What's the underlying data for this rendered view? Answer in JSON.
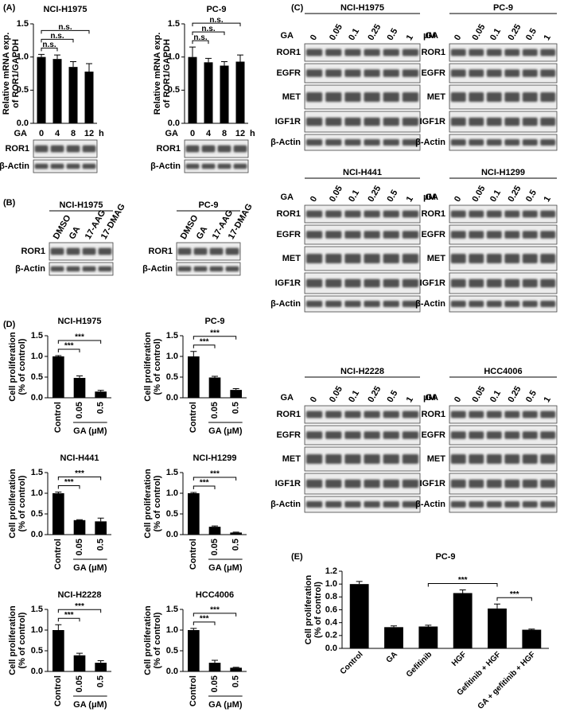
{
  "panel_labels": [
    "(A)",
    "(B)",
    "(C)",
    "(D)",
    "(E)"
  ],
  "chart_data": [
    {
      "type": "bar",
      "title": "NCI-H1975",
      "ylabel": [
        "Relative mRNA exp.",
        "of ROR1/GAPDH"
      ],
      "x_prefix": "GA",
      "x_suffix": "h",
      "categories": [
        "0",
        "4",
        "8",
        "12"
      ],
      "values": [
        1.0,
        0.97,
        0.85,
        0.78
      ],
      "errors": [
        0.04,
        0.06,
        0.08,
        0.12
      ],
      "color": "#000000",
      "ylim": [
        0,
        1.5
      ],
      "yticks": [
        {
          "value": 0,
          "label": "0.0"
        },
        0.5,
        {
          "value": 1,
          "label": "1.0"
        },
        1.5
      ],
      "brackets": [
        {
          "span": [
            0,
            1
          ],
          "label": "n.s."
        },
        {
          "span": [
            0,
            2
          ],
          "label": "n.s."
        },
        {
          "span": [
            0,
            3
          ],
          "label": "n.s."
        }
      ]
    },
    {
      "type": "bar",
      "title": "PC-9",
      "ylabel": [
        "Relative mRNA exp.",
        "of ROR1/GAPDH"
      ],
      "x_prefix": "GA",
      "x_suffix": "h",
      "categories": [
        "0",
        "4",
        "8",
        "12"
      ],
      "values": [
        1.0,
        0.92,
        0.87,
        0.93
      ],
      "errors": [
        0.15,
        0.06,
        0.06,
        0.1
      ],
      "color": "#000000",
      "ylim": [
        0,
        1.5
      ],
      "yticks": [
        {
          "value": 0,
          "label": "0.0"
        },
        0.5,
        {
          "value": 1,
          "label": "1.0"
        },
        1.5
      ],
      "brackets": [
        {
          "span": [
            0,
            1
          ],
          "label": "n.s."
        },
        {
          "span": [
            0,
            2
          ],
          "label": "n.s."
        },
        {
          "span": [
            0,
            3
          ],
          "label": "n.s."
        }
      ]
    },
    {
      "type": "bar",
      "title": "NCI-H1975",
      "ylabel": [
        "Cell proliferation",
        "(% of control)"
      ],
      "xlabel": "GA (μM)",
      "categories": [
        "Control",
        "0.05",
        "0.5"
      ],
      "values": [
        1.0,
        0.48,
        0.15
      ],
      "errors": [
        0.02,
        0.05,
        0.03
      ],
      "color": "#000000",
      "ylim": [
        0,
        1.5
      ],
      "yticks": [
        {
          "value": 0,
          "label": "0.0"
        },
        0.5,
        {
          "value": 1,
          "label": "1.0"
        },
        1.5
      ],
      "brackets": [
        {
          "span": [
            0,
            1
          ],
          "label": "***"
        },
        {
          "span": [
            0,
            2
          ],
          "label": "***"
        }
      ]
    },
    {
      "type": "bar",
      "title": "PC-9",
      "ylabel": [
        "Cell proliferation",
        "(% of control)"
      ],
      "xlabel": "GA (μM)",
      "categories": [
        "Control",
        "0.05",
        "0.5"
      ],
      "values": [
        1.0,
        0.49,
        0.19
      ],
      "errors": [
        0.12,
        0.03,
        0.03
      ],
      "color": "#000000",
      "ylim": [
        0,
        1.5
      ],
      "yticks": [
        {
          "value": 0,
          "label": "0.0"
        },
        0.5,
        {
          "value": 1,
          "label": "1.0"
        },
        1.5
      ],
      "brackets": [
        {
          "span": [
            0,
            1
          ],
          "label": "***"
        },
        {
          "span": [
            0,
            2
          ],
          "label": "***"
        }
      ]
    },
    {
      "type": "bar",
      "title": "NCI-H441",
      "ylabel": [
        "Cell proliferation",
        "(% of control)"
      ],
      "xlabel": "GA (μM)",
      "categories": [
        "Control",
        "0.05",
        "0.5"
      ],
      "values": [
        1.0,
        0.35,
        0.32
      ],
      "errors": [
        0.03,
        0.01,
        0.08
      ],
      "color": "#000000",
      "ylim": [
        0,
        1.5
      ],
      "yticks": [
        {
          "value": 0,
          "label": "0.0"
        },
        0.5,
        {
          "value": 1,
          "label": "1.0"
        },
        1.5
      ],
      "brackets": [
        {
          "span": [
            0,
            1
          ],
          "label": "***"
        },
        {
          "span": [
            0,
            2
          ],
          "label": "***"
        }
      ]
    },
    {
      "type": "bar",
      "title": "NCI-H1299",
      "ylabel": [
        "Cell proliferation",
        "(% of control)"
      ],
      "xlabel": "GA (μM)",
      "categories": [
        "Control",
        "0.05",
        "0.5"
      ],
      "values": [
        1.0,
        0.19,
        0.05
      ],
      "errors": [
        0.02,
        0.02,
        0.01
      ],
      "color": "#000000",
      "ylim": [
        0,
        1.5
      ],
      "yticks": [
        {
          "value": 0,
          "label": "0.0"
        },
        0.5,
        {
          "value": 1,
          "label": "1.0"
        },
        1.5
      ],
      "brackets": [
        {
          "span": [
            0,
            1
          ],
          "label": "***"
        },
        {
          "span": [
            0,
            2
          ],
          "label": "***"
        }
      ]
    },
    {
      "type": "bar",
      "title": "NCI-H2228",
      "ylabel": [
        "Cell proliferation",
        "(% of control)"
      ],
      "xlabel": "GA (μM)",
      "categories": [
        "Control",
        "0.05",
        "0.5"
      ],
      "values": [
        1.0,
        0.39,
        0.21
      ],
      "errors": [
        0.13,
        0.05,
        0.05
      ],
      "color": "#000000",
      "ylim": [
        0,
        1.5
      ],
      "yticks": [
        {
          "value": 0,
          "label": "0.0"
        },
        0.5,
        {
          "value": 1,
          "label": "1.0"
        },
        1.5
      ],
      "brackets": [
        {
          "span": [
            0,
            1
          ],
          "label": "***"
        },
        {
          "span": [
            0,
            2
          ],
          "label": "***"
        }
      ]
    },
    {
      "type": "bar",
      "title": "HCC4006",
      "ylabel": [
        "Cell proliferation",
        "(% of control)"
      ],
      "xlabel": "GA (μM)",
      "categories": [
        "Control",
        "0.05",
        "0.5"
      ],
      "values": [
        1.0,
        0.21,
        0.09
      ],
      "errors": [
        0.04,
        0.06,
        0.01
      ],
      "color": "#000000",
      "ylim": [
        0,
        1.5
      ],
      "yticks": [
        {
          "value": 0,
          "label": "0.0"
        },
        0.5,
        {
          "value": 1,
          "label": "1.0"
        },
        1.5
      ],
      "brackets": [
        {
          "span": [
            0,
            1
          ],
          "label": "***"
        },
        {
          "span": [
            0,
            2
          ],
          "label": "***"
        }
      ]
    },
    {
      "type": "bar",
      "title": "PC-9",
      "ylabel": [
        "Cell proliferation",
        "(% of control)"
      ],
      "categories": [
        "Control",
        "GA",
        "Gefitinib",
        "HGF",
        "Gefitinib + HGF",
        "GA + gefitinib + HGF"
      ],
      "values": [
        1.0,
        0.33,
        0.34,
        0.86,
        0.62,
        0.29
      ],
      "errors": [
        0.04,
        0.02,
        0.02,
        0.05,
        0.07,
        0.01
      ],
      "color": "#000000",
      "ylim": [
        0,
        1.2
      ],
      "yticks": [
        {
          "value": 0,
          "label": "0.0"
        },
        0.2,
        0.4,
        0.6,
        0.8,
        {
          "value": 1,
          "label": "1.0"
        },
        1.2
      ],
      "brackets": [
        {
          "span": [
            2,
            4
          ],
          "label": "***"
        },
        {
          "span": [
            4,
            5
          ],
          "label": "***"
        }
      ]
    }
  ],
  "blots_a": [
    {
      "rows": [
        "ROR1",
        "β-Actin"
      ]
    },
    {
      "rows": [
        "ROR1",
        "β-Actin"
      ]
    }
  ],
  "blots_b": [
    {
      "title": "NCI-H1975",
      "lanes": [
        "DMSO",
        "GA",
        "17-AAG",
        "17-DMAG"
      ],
      "rows": [
        "ROR1",
        "β-Actin"
      ]
    },
    {
      "title": "PC-9",
      "lanes": [
        "DMSO",
        "GA",
        "17-AAG",
        "17-DMAG"
      ],
      "rows": [
        "ROR1",
        "β-Actin"
      ]
    }
  ],
  "blots_c": [
    {
      "title": "NCI-H1975",
      "treatment": "GA",
      "lanes": [
        "0",
        "0.05",
        "0.1",
        "0.25",
        "0.5",
        "1"
      ],
      "unit": "μM",
      "rows": [
        "ROR1",
        "EGFR",
        "MET",
        "IGF1R",
        "β-Actin"
      ]
    },
    {
      "title": "PC-9",
      "treatment": "GA",
      "lanes": [
        "0",
        "0.05",
        "0.1",
        "0.25",
        "0.5",
        "1"
      ],
      "rows": [
        "ROR1",
        "EGFR",
        "MET",
        "IGF1R",
        "β-Actin"
      ]
    },
    {
      "title": "NCI-H441",
      "treatment": "GA",
      "lanes": [
        "0",
        "0.05",
        "0.1",
        "0.25",
        "0.5",
        "1"
      ],
      "unit": "μM",
      "rows": [
        "ROR1",
        "EGFR",
        "MET",
        "IGF1R",
        "β-Actin"
      ]
    },
    {
      "title": "NCI-H1299",
      "treatment": "GA",
      "lanes": [
        "0",
        "0.05",
        "0.1",
        "0.25",
        "0.5",
        "1"
      ],
      "rows": [
        "ROR1",
        "EGFR",
        "MET",
        "IGF1R",
        "β-Actin"
      ]
    },
    {
      "title": "NCI-H2228",
      "treatment": "GA",
      "lanes": [
        "0",
        "0.05",
        "0.1",
        "0.25",
        "0.5",
        "1"
      ],
      "unit": "μM",
      "rows": [
        "ROR1",
        "EGFR",
        "MET",
        "IGF1R",
        "β-Actin"
      ]
    },
    {
      "title": "HCC4006",
      "treatment": "GA",
      "lanes": [
        "0",
        "0.05",
        "0.1",
        "0.25",
        "0.5",
        "1"
      ],
      "rows": [
        "ROR1",
        "EGFR",
        "MET",
        "IGF1R",
        "β-Actin"
      ]
    }
  ]
}
